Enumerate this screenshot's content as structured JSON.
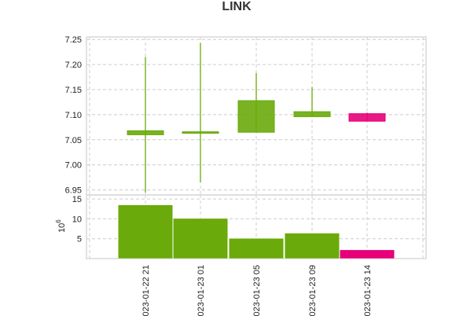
{
  "chart_data": {
    "type": "candlestick",
    "title": "LINK",
    "categories": [
      "2023-01-22 21",
      "2023-01-23 01",
      "2023-01-23 05",
      "2023-01-23 09",
      "2023-01-23 14"
    ],
    "x_tick_labels": [
      "023-01-22 21",
      "023-01-23 01",
      "023-01-23 05",
      "023-01-23 09",
      "023-01-23 14"
    ],
    "ohlc": [
      {
        "open": 7.06,
        "high": 7.215,
        "low": 6.945,
        "close": 7.068
      },
      {
        "open": 7.063,
        "high": 7.243,
        "low": 6.965,
        "close": 7.066
      },
      {
        "open": 7.065,
        "high": 7.183,
        "low": 7.065,
        "close": 7.128
      },
      {
        "open": 7.096,
        "high": 7.155,
        "low": 7.096,
        "close": 7.106
      },
      {
        "open": 7.102,
        "high": 7.104,
        "low": 7.087,
        "close": 7.087
      }
    ],
    "price_ylim": [
      6.94,
      7.255
    ],
    "price_ticks": [
      6.95,
      7.0,
      7.05,
      7.1,
      7.15,
      7.2,
      7.25
    ],
    "price_tick_labels": [
      "6.95",
      "7.00",
      "7.05",
      "7.10",
      "7.15",
      "7.20",
      "7.25"
    ],
    "volume": [
      13.5,
      10.1,
      5.1,
      6.4,
      2.2
    ],
    "volume_ylim": [
      0,
      16
    ],
    "volume_ticks": [
      5,
      10,
      15
    ],
    "volume_tick_labels": [
      "5",
      "10",
      "15"
    ],
    "volume_ylabel_base": "10",
    "volume_ylabel_exp": "6",
    "grid": true,
    "colors": {
      "up": "#6aaa0a",
      "down": "#e6007a"
    }
  }
}
